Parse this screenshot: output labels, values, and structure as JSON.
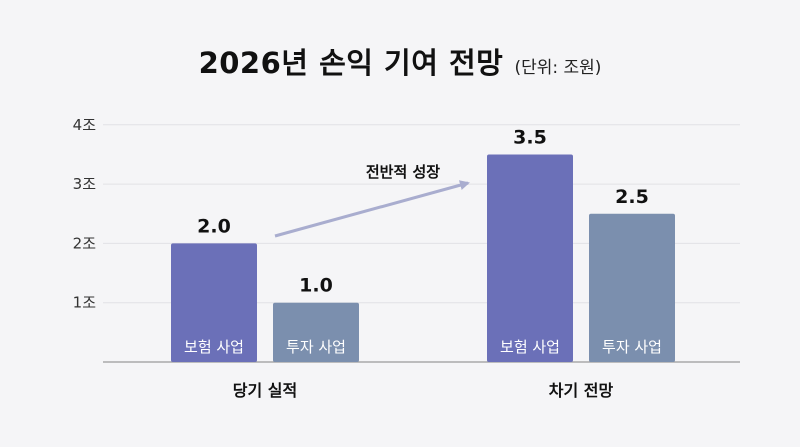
{
  "chart_data": {
    "type": "bar",
    "title": "2026년 손익 기여 전망",
    "unit_note": "(단위: 조원)",
    "yticks": [
      "1조",
      "2조",
      "3조",
      "4조"
    ],
    "ytick_values": [
      1,
      2,
      3,
      4
    ],
    "ylim": [
      0,
      4.3
    ],
    "grid": true,
    "groups": [
      {
        "label": "당기 실적",
        "bars": [
          {
            "name": "보험 사업",
            "value": 2.0,
            "label": "2.0",
            "color": "#6b70b8"
          },
          {
            "name": "투자 사업",
            "value": 1.0,
            "label": "1.0",
            "color": "#7b8fae"
          }
        ]
      },
      {
        "label": "차기 전망",
        "bars": [
          {
            "name": "보험 사업",
            "value": 3.5,
            "label": "3.5",
            "color": "#6b70b8"
          },
          {
            "name": "투자 사업",
            "value": 2.5,
            "label": "2.5",
            "color": "#7b8fae"
          }
        ]
      }
    ],
    "annotation": {
      "text": "전반적 성장",
      "arrow_color": "#a9adcf"
    }
  }
}
